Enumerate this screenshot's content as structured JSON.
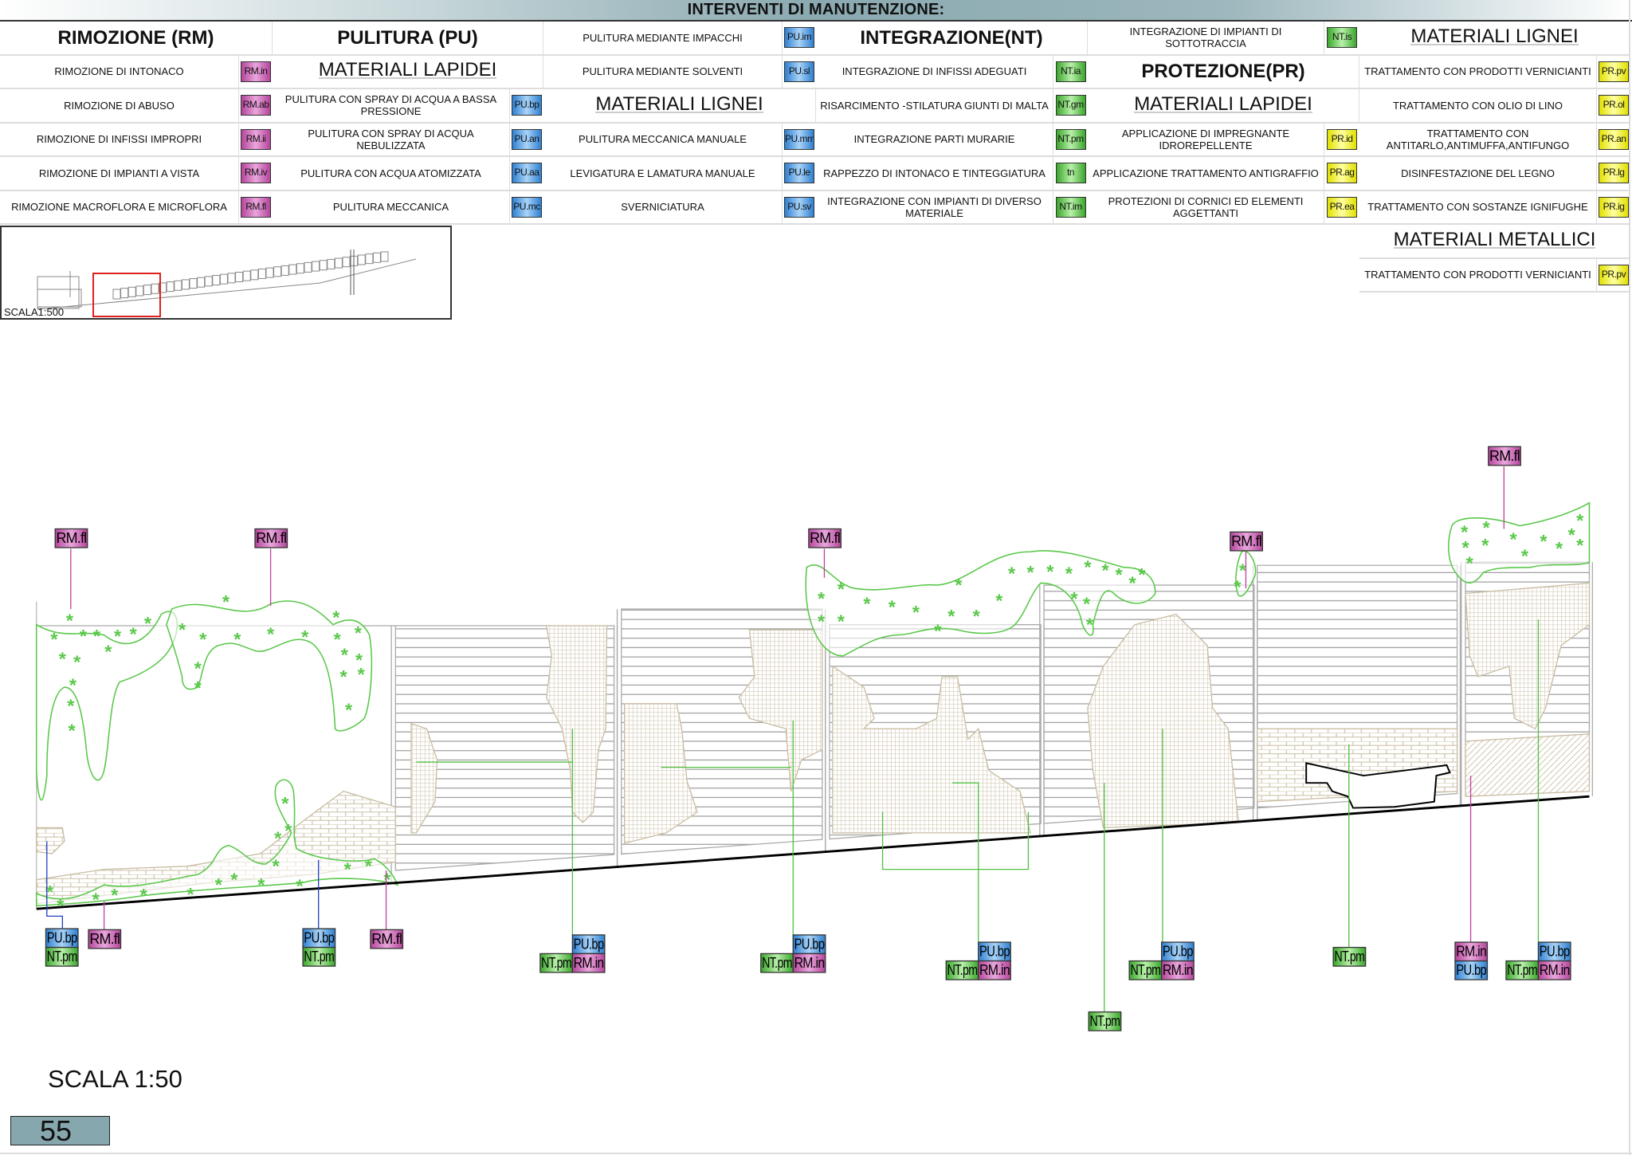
{
  "title": "INTERVENTI DI MANUTENZIONE:",
  "colors": {
    "rm": "#c050a8",
    "pu": "#4a98e0",
    "nt": "#50c040",
    "pr": "#f0f020",
    "vegetation": "#5ac84a",
    "hatch": "#c9bda3",
    "header_bar": "#8aa9b0"
  },
  "legend": [
    {
      "cells": [
        {
          "kind": "header",
          "text": "RIMOZIONE (RM)"
        },
        {
          "kind": "item",
          "text": "RIMOZIONE DI INTONACO",
          "code": "RM.in",
          "type": "rm"
        },
        {
          "kind": "item",
          "text": "RIMOZIONE DI ABUSO",
          "code": "RM.ab",
          "type": "rm"
        },
        {
          "kind": "item",
          "text": "RIMOZIONE DI INFISSI IMPROPRI",
          "code": "RM.ii",
          "type": "rm"
        },
        {
          "kind": "item",
          "text": "RIMOZIONE DI IMPIANTI A VISTA",
          "code": "RM.iv",
          "type": "rm"
        },
        {
          "kind": "item",
          "text": "RIMOZIONE MACROFLORA E MICROFLORA",
          "code": "RM.fl",
          "type": "rm"
        }
      ]
    },
    {
      "cells": [
        {
          "kind": "header",
          "text": "PULITURA (PU)"
        },
        {
          "kind": "sub",
          "text": "MATERIALI LAPIDEI"
        },
        {
          "kind": "item",
          "text": "PULITURA CON SPRAY DI ACQUA A BASSA PRESSIONE",
          "code": "PU.bp",
          "type": "pu"
        },
        {
          "kind": "item",
          "text": "PULITURA CON SPRAY DI ACQUA NEBULIZZATA",
          "code": "PU.an",
          "type": "pu"
        },
        {
          "kind": "item",
          "text": "PULITURA CON  ACQUA ATOMIZZATA",
          "code": "PU.aa",
          "type": "pu"
        },
        {
          "kind": "item",
          "text": "PULITURA MECCANICA",
          "code": "PU.mc",
          "type": "pu"
        }
      ]
    },
    {
      "cells": [
        {
          "kind": "item",
          "text": "PULITURA  MEDIANTE IMPACCHI",
          "code": "PU.im",
          "type": "pu"
        },
        {
          "kind": "item",
          "text": "PULITURA MEDIANTE SOLVENTI",
          "code": "PU.sl",
          "type": "pu"
        },
        {
          "kind": "sub",
          "text": "MATERIALI LIGNEI"
        },
        {
          "kind": "item",
          "text": "PULITURA MECCANICA MANUALE",
          "code": "PU.mm",
          "type": "pu"
        },
        {
          "kind": "item",
          "text": "LEVIGATURA E LAMATURA MANUALE",
          "code": "PU.le",
          "type": "pu"
        },
        {
          "kind": "item",
          "text": "SVERNICIATURA",
          "code": "PU.sv",
          "type": "pu"
        }
      ]
    },
    {
      "cells": [
        {
          "kind": "header",
          "text": "INTEGRAZIONE(NT)"
        },
        {
          "kind": "item",
          "text": "INTEGRAZIONE DI INFISSI ADEGUATI",
          "code": "NT.ia",
          "type": "nt"
        },
        {
          "kind": "item",
          "text": "RISARCIMENTO -STILATURA GIUNTI DI MALTA",
          "code": "NT.gm",
          "type": "nt"
        },
        {
          "kind": "item",
          "text": "INTEGRAZIONE PARTI MURARIE",
          "code": "NT.pm",
          "type": "nt"
        },
        {
          "kind": "item",
          "text": "RAPPEZZO DI INTONACO E TINTEGGIATURA",
          "code": "tn",
          "type": "nt"
        },
        {
          "kind": "item",
          "text": "INTEGRAZIONE CON IMPIANTI DI DIVERSO MATERIALE",
          "code": "NT.im",
          "type": "nt"
        }
      ]
    },
    {
      "cells": [
        {
          "kind": "item",
          "text": "INTEGRAZIONE DI IMPIANTI DI SOTTOTRACCIA",
          "code": "NT.is",
          "type": "nt"
        },
        {
          "kind": "header",
          "text": "PROTEZIONE(PR)"
        },
        {
          "kind": "sub",
          "text": "MATERIALI LAPIDEI"
        },
        {
          "kind": "item",
          "text": "APPLICAZIONE DI IMPREGNANTE IDROREPELLENTE",
          "code": "PR.id",
          "type": "pr"
        },
        {
          "kind": "item",
          "text": "APPLICAZIONE TRATTAMENTO ANTIGRAFFIO",
          "code": "PR.ag",
          "type": "pr"
        },
        {
          "kind": "item",
          "text": "PROTEZIONI DI CORNICI ED ELEMENTI AGGETTANTI",
          "code": "PR.ea",
          "type": "pr"
        }
      ]
    },
    {
      "cells": [
        {
          "kind": "sub",
          "text": "MATERIALI LIGNEI"
        },
        {
          "kind": "item",
          "text": "TRATTAMENTO CON PRODOTTI VERNICIANTI",
          "code": "PR.pv",
          "type": "pr"
        },
        {
          "kind": "item",
          "text": "TRATTAMENTO CON OLIO DI LINO",
          "code": "PR.ol",
          "type": "pr"
        },
        {
          "kind": "item",
          "text": "TRATTAMENTO CON ANTITARLO,ANTIMUFFA,ANTIFUNGO",
          "code": "PR.an",
          "type": "pr"
        },
        {
          "kind": "item",
          "text": "DISINFESTAZIONE DEL LEGNO",
          "code": "PR.lg",
          "type": "pr"
        },
        {
          "kind": "item",
          "text": "TRATTAMENTO CON SOSTANZE IGNIFUGHE",
          "code": "PR.ig",
          "type": "pr"
        },
        {
          "kind": "sub",
          "text": "MATERIALI METALLICI"
        },
        {
          "kind": "item",
          "text": "TRATTAMENTO CON PRODOTTI VERNICIANTI",
          "code": "PR.pv",
          "type": "pr"
        }
      ]
    }
  ],
  "keymap": {
    "scale_label": "SCALA1:500"
  },
  "elevation": {
    "tags": [
      {
        "code": "RM.fl",
        "type": "rm"
      },
      {
        "code": "RM.fl",
        "type": "rm"
      },
      {
        "code": "RM.fl",
        "type": "rm"
      },
      {
        "code": "RM.fl",
        "type": "rm"
      },
      {
        "code": "RM.fl",
        "type": "rm"
      },
      {
        "code": "PU.bp",
        "type": "pu"
      },
      {
        "code": "NT.pm",
        "type": "nt"
      },
      {
        "code": "RM.fl",
        "type": "rm"
      },
      {
        "code": "PU.bp",
        "type": "pu"
      },
      {
        "code": "NT.pm",
        "type": "nt"
      },
      {
        "code": "RM.fl",
        "type": "rm"
      },
      {
        "code": "PU.bp",
        "type": "pu"
      },
      {
        "code": "NT.pm",
        "type": "nt"
      },
      {
        "code": "RM.in",
        "type": "rm"
      },
      {
        "code": "PU.bp",
        "type": "pu"
      },
      {
        "code": "NT.pm",
        "type": "nt"
      },
      {
        "code": "RM.in",
        "type": "rm"
      },
      {
        "code": "PU.bp",
        "type": "pu"
      },
      {
        "code": "NT.pm",
        "type": "nt"
      },
      {
        "code": "RM.in",
        "type": "rm"
      },
      {
        "code": "PU.bp",
        "type": "pu"
      },
      {
        "code": "NT.pm",
        "type": "nt"
      },
      {
        "code": "RM.in",
        "type": "rm"
      },
      {
        "code": "NT.pm",
        "type": "nt"
      },
      {
        "code": "NT.pm",
        "type": "nt"
      },
      {
        "code": "RM.in",
        "type": "rm"
      },
      {
        "code": "PU.bp",
        "type": "pu"
      },
      {
        "code": "PU.bp",
        "type": "pu"
      },
      {
        "code": "NT.pm",
        "type": "nt"
      },
      {
        "code": "RM.in",
        "type": "rm"
      }
    ]
  },
  "scale_label": "SCALA 1:50",
  "page_number": "55"
}
